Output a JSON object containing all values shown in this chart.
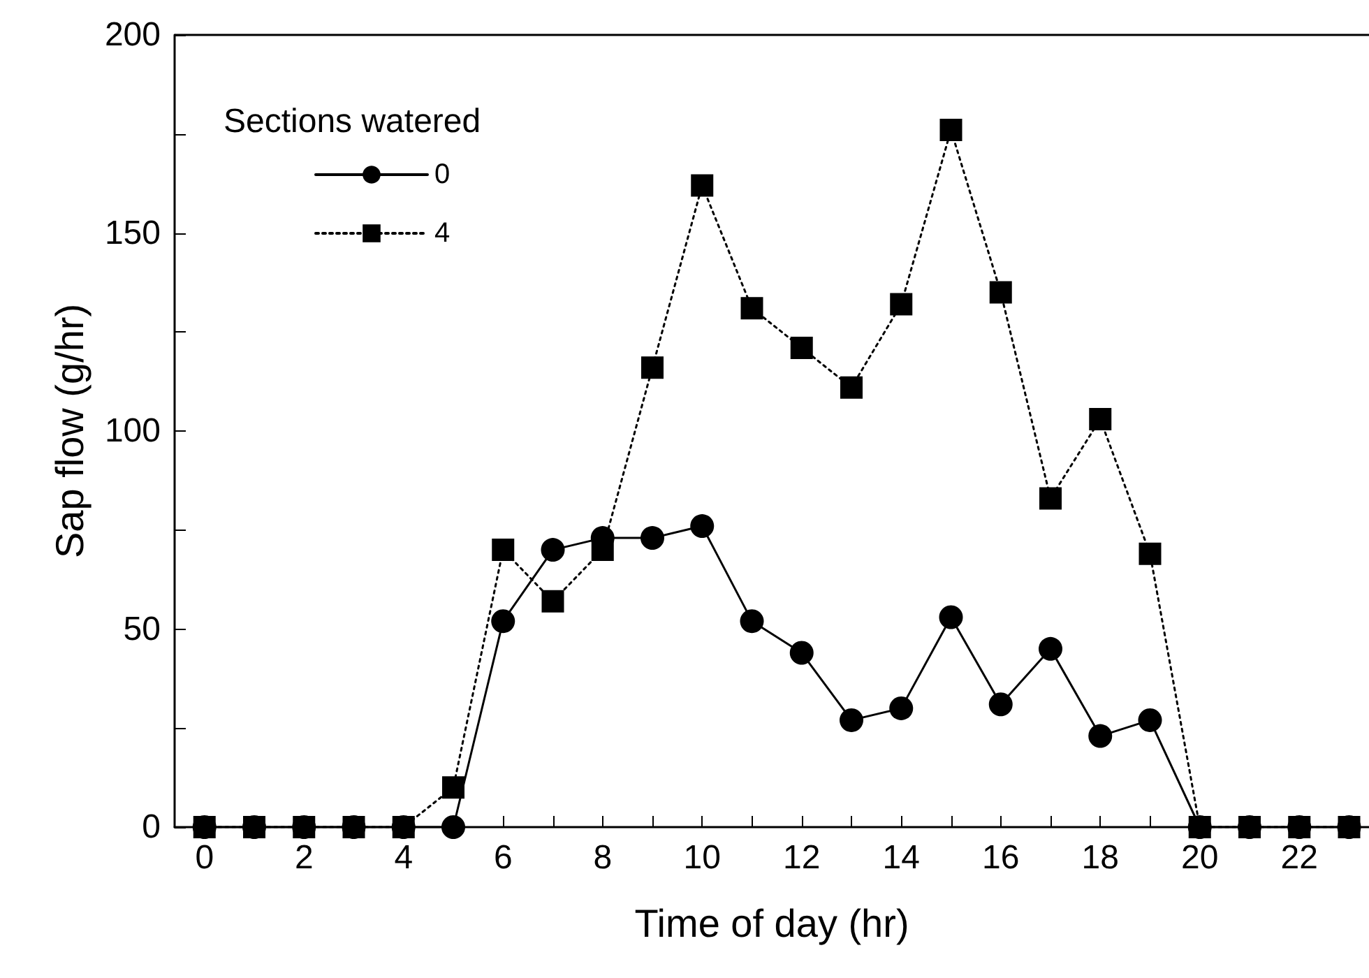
{
  "chart_data": {
    "type": "line",
    "xlabel": "Time of day (hr)",
    "ylabel": "Sap flow (g/hr)",
    "legend_title": "Sections watered",
    "legend": "top left",
    "grid": false,
    "x": [
      0,
      1,
      2,
      3,
      4,
      5,
      6,
      7,
      8,
      9,
      10,
      11,
      12,
      13,
      14,
      15,
      16,
      17,
      18,
      19,
      20,
      21,
      22,
      23
    ],
    "xlim": [
      -0.6,
      23.4
    ],
    "xticks": [
      0,
      {
        "value": 1,
        "label": null
      },
      2,
      {
        "value": 3,
        "label": null
      },
      4,
      {
        "value": 5,
        "label": null
      },
      6,
      {
        "value": 7,
        "label": null
      },
      8,
      {
        "value": 9,
        "label": null
      },
      10,
      {
        "value": 11,
        "label": null
      },
      12,
      {
        "value": 13,
        "label": null
      },
      14,
      {
        "value": 15,
        "label": null
      },
      16,
      {
        "value": 17,
        "label": null
      },
      18,
      {
        "value": 19,
        "label": null
      },
      20,
      {
        "value": 21,
        "label": null
      },
      22,
      {
        "value": 23,
        "label": null
      }
    ],
    "ylim": [
      0,
      200
    ],
    "yticks": [
      0,
      {
        "value": 25,
        "label": null
      },
      50,
      {
        "value": 75,
        "label": null
      },
      100,
      {
        "value": 125,
        "label": null
      },
      150,
      {
        "value": 175,
        "label": null
      },
      200
    ],
    "series": [
      {
        "name": "0",
        "color": "#000000",
        "marker": "circle",
        "line_style": "solid",
        "values": [
          0,
          0,
          0,
          0,
          0,
          0,
          52,
          70,
          73,
          73,
          76,
          52,
          44,
          27,
          30,
          53,
          31,
          45,
          23,
          27,
          0,
          0,
          0,
          0
        ]
      },
      {
        "name": "4",
        "color": "#000000",
        "marker": "square",
        "line_style": "dotted",
        "values": [
          0,
          0,
          0,
          0,
          0,
          10,
          70,
          57,
          70,
          116,
          162,
          131,
          121,
          111,
          132,
          176,
          135,
          83,
          103,
          69,
          0,
          0,
          0,
          0
        ]
      }
    ]
  }
}
